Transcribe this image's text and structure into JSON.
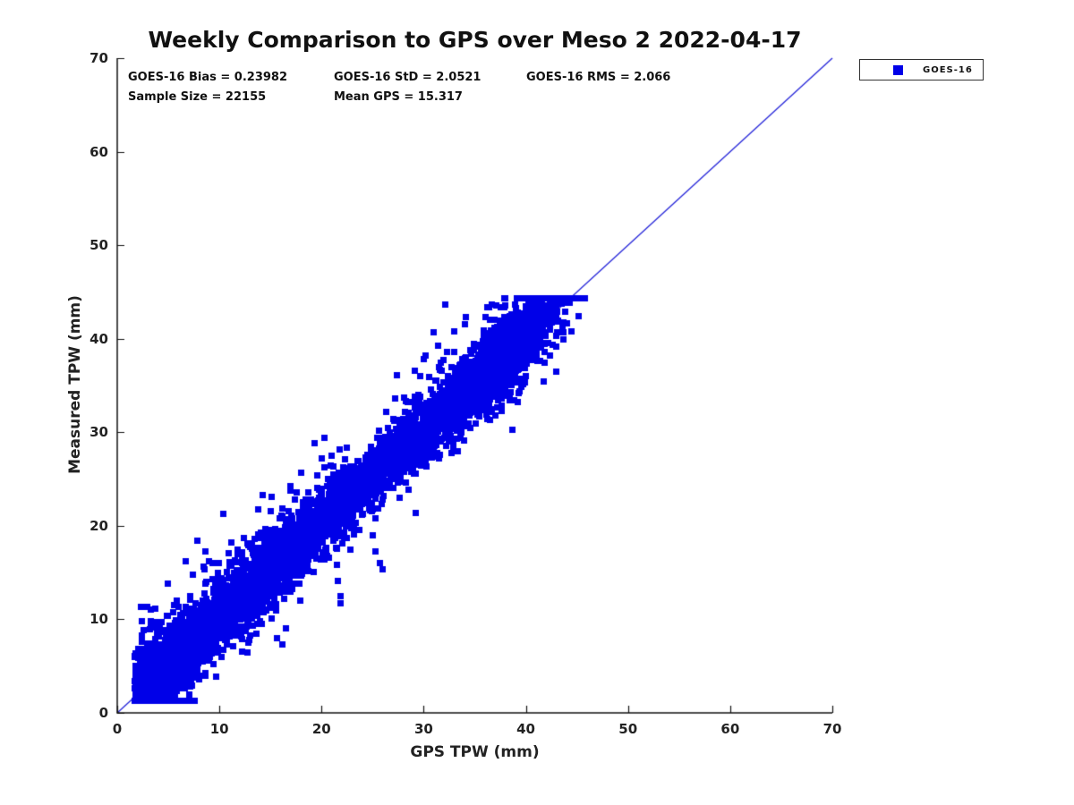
{
  "title": "Weekly Comparison to GPS over Meso 2 2022-04-17",
  "annotations": {
    "bias": "GOES-16 Bias = 0.23982",
    "std": "GOES-16 StD = 2.0521",
    "rms": "GOES-16 RMS = 2.066",
    "sample_size": "Sample Size = 22155",
    "mean_gps": "Mean GPS = 15.317"
  },
  "legend": {
    "items": [
      {
        "label": "GOES-16",
        "marker": "filled-square",
        "marker_color": "#0000e8"
      }
    ]
  },
  "chart_data": {
    "type": "scatter",
    "title": "Weekly Comparison to GPS over Meso 2 2022-04-17",
    "xlabel": "GPS TPW (mm)",
    "ylabel": "Measured TPW (mm)",
    "xlim": [
      0,
      70
    ],
    "ylim": [
      0,
      70
    ],
    "xticks": [
      0,
      10,
      20,
      30,
      40,
      50,
      60,
      70
    ],
    "yticks": [
      0,
      10,
      20,
      30,
      40,
      50,
      60,
      70
    ],
    "grid": false,
    "axis_box": "left-bottom-only",
    "tick_direction": "in",
    "legend_position": "outside-top-right",
    "series": [
      {
        "name": "GOES-16",
        "marker": "filled-square",
        "color": "#0000e8",
        "n_points": 22155,
        "stats": {
          "bias": 0.23982,
          "std": 2.0521,
          "rms": 2.066,
          "sample_size": 22155,
          "mean_gps": 15.317
        },
        "relationship": "y approx x + 0.24 mm, residual std approx 2.05 mm; cloud spans x 1.5-46 mm, y 1.3-44 mm, densest below 20 mm with secondary dense blob near 33-43 mm",
        "point_cloud_model": {
          "seed": 13,
          "n_render": 6500,
          "marker_px": 7,
          "components": [
            {
              "type": "exp",
              "weight": 0.5,
              "offset": 1.7,
              "scale": 8.5,
              "max": 43
            },
            {
              "type": "uniform",
              "weight": 0.27,
              "min": 11,
              "max": 34
            },
            {
              "type": "normal",
              "weight": 0.23,
              "mean": 37.2,
              "sd": 2.9,
              "min": 29,
              "max": 45.8
            }
          ],
          "noise": {
            "bias": 0.24,
            "sd": 1.7,
            "wide_sd": 3.9,
            "wide_frac": 0.1
          },
          "clamp": {
            "xmin": 1.5,
            "xmax": 45.8,
            "ymin": 1.3,
            "ymax": 44.3
          }
        }
      }
    ],
    "reference_line": {
      "from": [
        0,
        0
      ],
      "to": [
        70,
        70
      ],
      "color": "#2424d8",
      "style": "solid",
      "meaning": "1:1 line"
    }
  }
}
